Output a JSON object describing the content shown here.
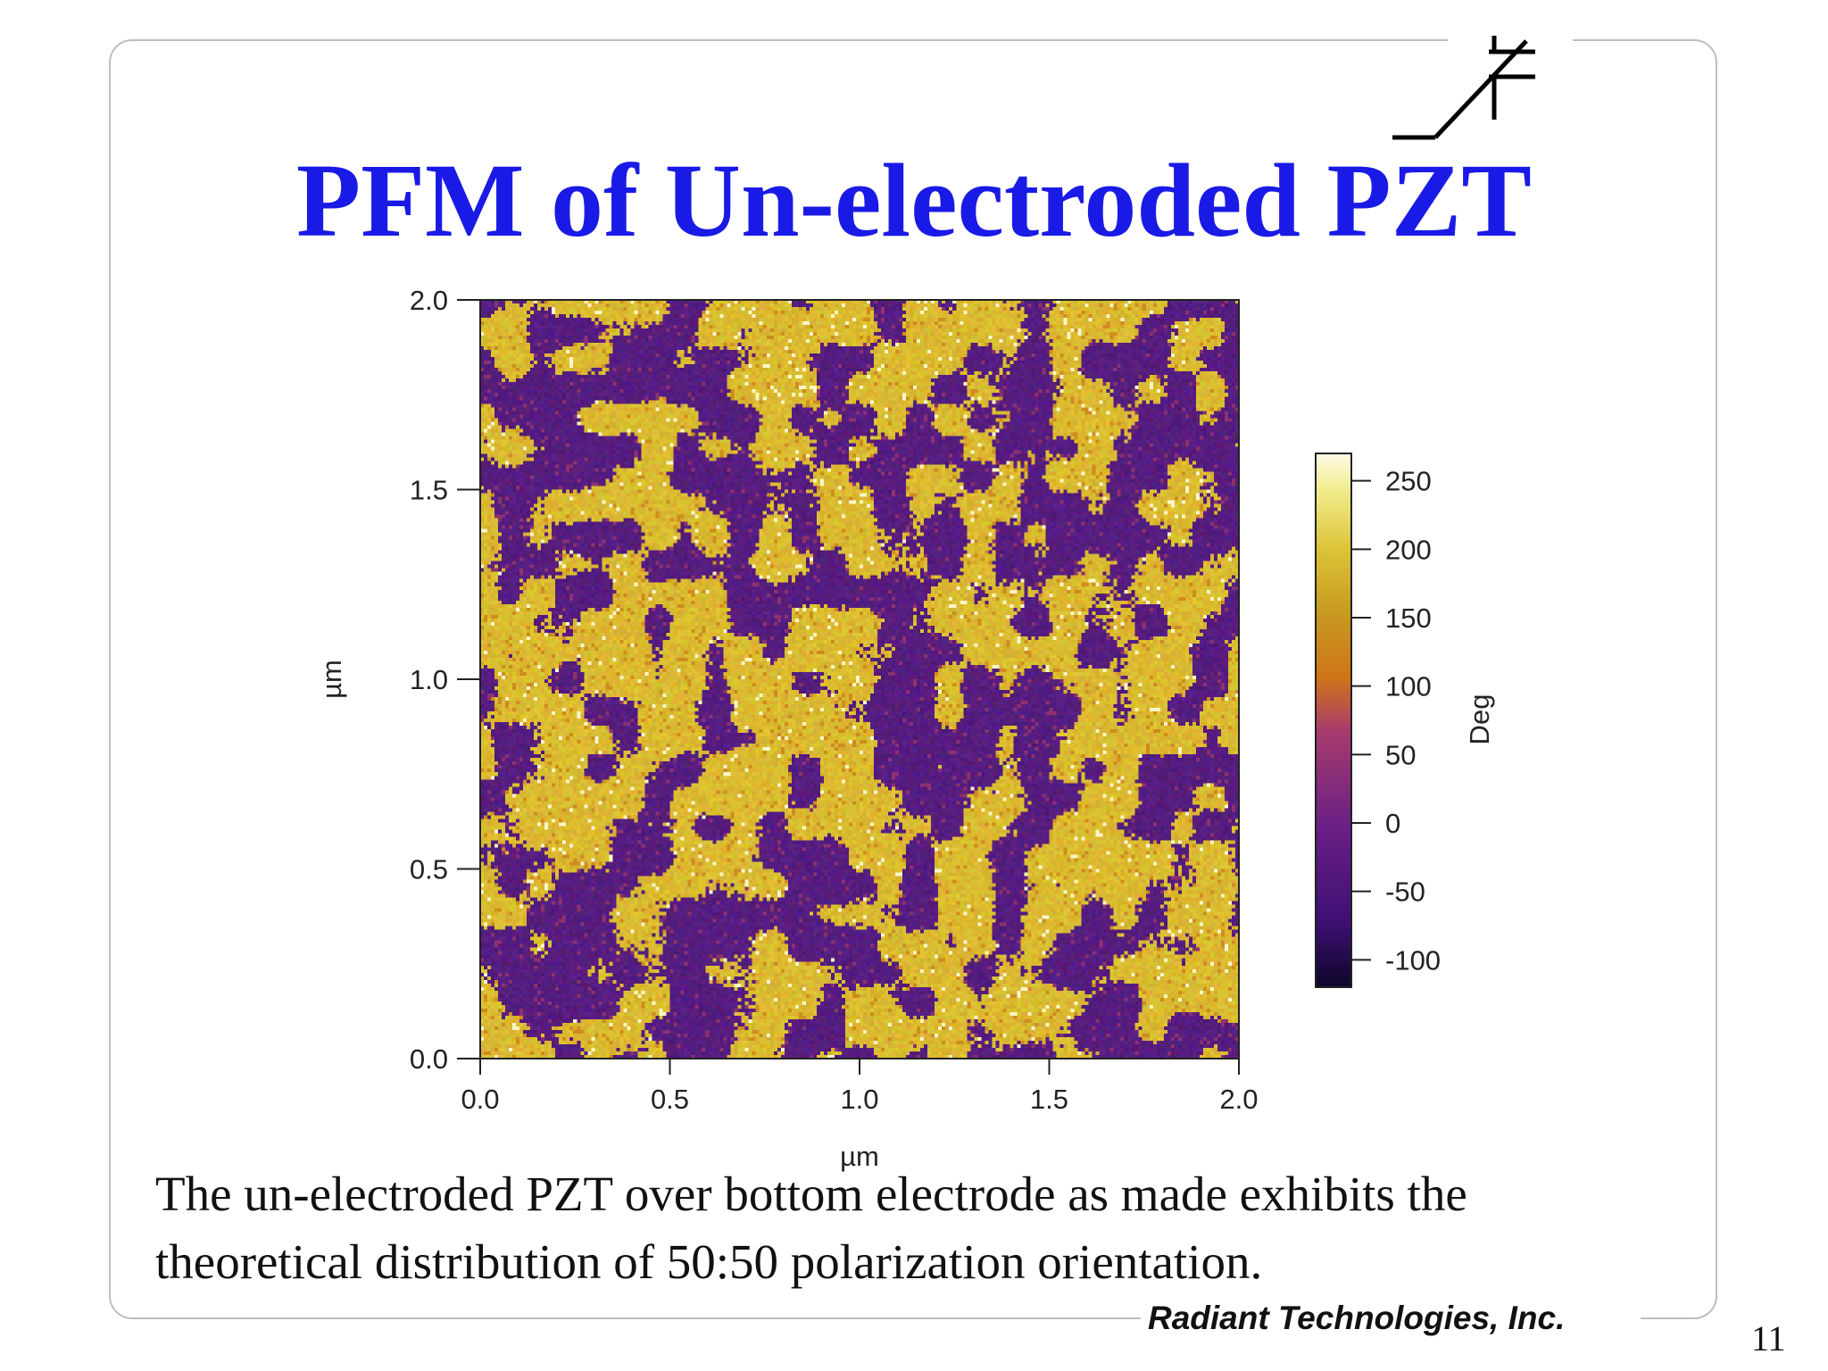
{
  "slide": {
    "title": "PFM of Un-electroded PZT",
    "caption_line1": "The un-electroded PZT over bottom electrode as made exhibits the",
    "caption_line2": "theoretical distribution of 50:50 polarization orientation.",
    "company": "Radiant Technologies, Inc.",
    "page_number": "11",
    "logo_icon": "ferroelectric-capacitor-symbol-icon",
    "title_color": "#1a1ae6"
  },
  "chart_data": {
    "type": "heatmap",
    "title": "",
    "xlabel": "µm",
    "ylabel": "µm",
    "xlim": [
      0.0,
      2.0
    ],
    "ylim": [
      0.0,
      2.0
    ],
    "x_ticks": [
      "0.0",
      "0.5",
      "1.0",
      "1.5",
      "2.0"
    ],
    "y_ticks": [
      "0.0",
      "0.5",
      "1.0",
      "1.5",
      "2.0"
    ],
    "colorbar": {
      "label": "Deg",
      "range": [
        -120,
        270
      ],
      "ticks": [
        250,
        200,
        150,
        100,
        50,
        0,
        -50,
        -100
      ],
      "colormap": [
        "#0d0628",
        "#3d0f73",
        "#6a1f86",
        "#a83b6d",
        "#cf7418",
        "#c79a20",
        "#dcc338",
        "#f1ec8c",
        "#fffbe8"
      ]
    },
    "domain_values_deg": {
      "down_polarization_approx": -40,
      "up_polarization_approx": 170
    },
    "domain_fraction_up": 0.5,
    "grid": false,
    "legend": "colorbar right"
  }
}
